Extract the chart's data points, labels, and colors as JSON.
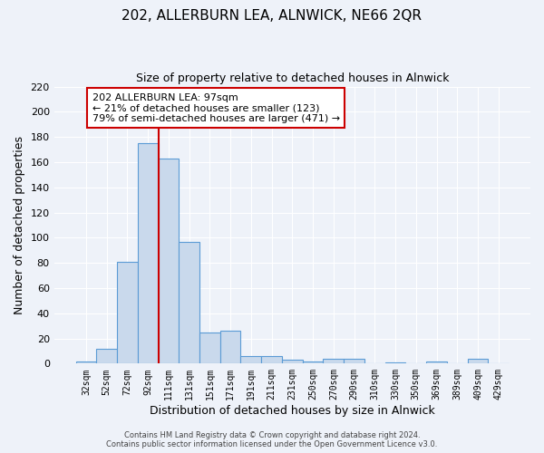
{
  "title": "202, ALLERBURN LEA, ALNWICK, NE66 2QR",
  "subtitle": "Size of property relative to detached houses in Alnwick",
  "xlabel": "Distribution of detached houses by size in Alnwick",
  "ylabel": "Number of detached properties",
  "bar_labels": [
    "32sqm",
    "52sqm",
    "72sqm",
    "92sqm",
    "111sqm",
    "131sqm",
    "151sqm",
    "171sqm",
    "191sqm",
    "211sqm",
    "231sqm",
    "250sqm",
    "270sqm",
    "290sqm",
    "310sqm",
    "330sqm",
    "350sqm",
    "369sqm",
    "389sqm",
    "409sqm",
    "429sqm"
  ],
  "bar_values": [
    2,
    12,
    81,
    175,
    163,
    97,
    25,
    26,
    6,
    6,
    3,
    2,
    4,
    4,
    0,
    1,
    0,
    2,
    0,
    4,
    0
  ],
  "bar_color": "#c9d9ec",
  "bar_edge_color": "#5b9bd5",
  "bar_edge_width": 0.8,
  "vline_x": 3.5,
  "vline_color": "#cc0000",
  "ylim": [
    0,
    220
  ],
  "yticks": [
    0,
    20,
    40,
    60,
    80,
    100,
    120,
    140,
    160,
    180,
    200,
    220
  ],
  "annotation_title": "202 ALLERBURN LEA: 97sqm",
  "annotation_line1": "← 21% of detached houses are smaller (123)",
  "annotation_line2": "79% of semi-detached houses are larger (471) →",
  "annotation_box_color": "#cc0000",
  "footer_line1": "Contains HM Land Registry data © Crown copyright and database right 2024.",
  "footer_line2": "Contains public sector information licensed under the Open Government Licence v3.0.",
  "background_color": "#eef2f9",
  "grid_color": "#ffffff",
  "title_fontsize": 11,
  "subtitle_fontsize": 9
}
